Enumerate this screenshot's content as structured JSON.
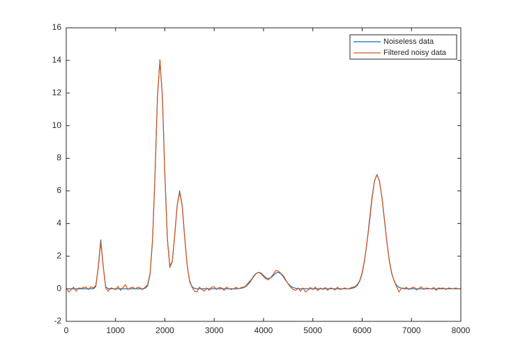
{
  "chart_data": {
    "type": "line",
    "x": [
      0,
      50,
      100,
      150,
      200,
      250,
      300,
      350,
      400,
      450,
      500,
      550,
      600,
      650,
      700,
      750,
      800,
      850,
      900,
      950,
      1000,
      1050,
      1100,
      1150,
      1200,
      1250,
      1300,
      1350,
      1400,
      1450,
      1500,
      1550,
      1600,
      1650,
      1700,
      1750,
      1800,
      1850,
      1900,
      1950,
      2000,
      2050,
      2100,
      2150,
      2200,
      2250,
      2300,
      2350,
      2400,
      2450,
      2500,
      2550,
      2600,
      2650,
      2700,
      2750,
      2800,
      2850,
      2900,
      2950,
      3000,
      3050,
      3100,
      3150,
      3200,
      3250,
      3300,
      3350,
      3400,
      3450,
      3500,
      3550,
      3600,
      3650,
      3700,
      3750,
      3800,
      3850,
      3900,
      3950,
      4000,
      4050,
      4100,
      4150,
      4200,
      4250,
      4300,
      4350,
      4400,
      4450,
      4500,
      4550,
      4600,
      4650,
      4700,
      4750,
      4800,
      4850,
      4900,
      4950,
      5000,
      5050,
      5100,
      5150,
      5200,
      5250,
      5300,
      5350,
      5400,
      5450,
      5500,
      5550,
      5600,
      5650,
      5700,
      5750,
      5800,
      5850,
      5900,
      5950,
      6000,
      6050,
      6100,
      6150,
      6200,
      6250,
      6300,
      6350,
      6400,
      6450,
      6500,
      6550,
      6600,
      6650,
      6700,
      6750,
      6800,
      6850,
      6900,
      6950,
      7000,
      7050,
      7100,
      7150,
      7200,
      7250,
      7300,
      7350,
      7400,
      7450,
      7500,
      7550,
      7600,
      7650,
      7700,
      7750,
      7800,
      7850,
      7900,
      7950,
      8000
    ],
    "series": [
      {
        "name": "Noiseless data",
        "color": "#0072bd",
        "values": [
          0,
          0,
          0,
          0,
          0,
          0,
          0,
          0,
          0,
          0,
          0,
          0,
          0.13,
          1.37,
          3,
          1.37,
          0.13,
          0,
          0,
          0,
          0,
          0,
          0,
          0,
          0,
          0,
          0,
          0,
          0,
          0,
          0,
          0,
          0.03,
          0.18,
          0.88,
          2.95,
          7.01,
          11.78,
          14,
          11.78,
          7.03,
          3.08,
          1.39,
          1.68,
          3.27,
          5.14,
          6,
          5.14,
          3.24,
          1.5,
          0.51,
          0.13,
          0.02,
          0,
          0,
          0,
          0,
          0,
          0,
          0,
          0,
          0,
          0,
          0,
          0,
          0,
          0,
          0,
          0,
          0,
          0.01,
          0.03,
          0.07,
          0.16,
          0.31,
          0.51,
          0.74,
          0.93,
          1.01,
          0.96,
          0.81,
          0.67,
          0.62,
          0.67,
          0.81,
          0.96,
          1.01,
          0.93,
          0.74,
          0.51,
          0.31,
          0.16,
          0.07,
          0.03,
          0.01,
          0,
          0,
          0,
          0,
          0,
          0,
          0,
          0,
          0,
          0,
          0,
          0,
          0,
          0,
          0,
          0,
          0,
          0,
          0,
          0,
          0,
          0.03,
          0.08,
          0.2,
          0.46,
          0.95,
          1.75,
          2.88,
          4.25,
          5.61,
          6.62,
          7,
          6.62,
          5.61,
          4.25,
          2.88,
          1.75,
          0.95,
          0.46,
          0.2,
          0.08,
          0.03,
          0,
          0,
          0,
          0,
          0,
          0,
          0,
          0,
          0,
          0,
          0,
          0,
          0,
          0,
          0,
          0,
          0,
          0,
          0,
          0,
          0,
          0,
          0,
          0
        ]
      },
      {
        "name": "Filtered noisy data",
        "color": "#d95319",
        "values": [
          0.05,
          -0.2,
          -0.05,
          0.1,
          -0.15,
          0.05,
          0.02,
          0.08,
          0.1,
          -0.05,
          0.12,
          0.05,
          0.2,
          1.3,
          2.85,
          1.4,
          0.05,
          -0.15,
          0.05,
          0.02,
          -0.05,
          0.15,
          -0.1,
          0.08,
          0.25,
          -0.05,
          0.05,
          0.1,
          -0.02,
          0.1,
          0.05,
          -0.05,
          0.1,
          0.25,
          0.95,
          3.0,
          6.95,
          11.8,
          14.05,
          11.7,
          7.0,
          3.1,
          1.3,
          1.65,
          3.3,
          5.1,
          5.9,
          5.1,
          3.2,
          1.5,
          0.45,
          0.1,
          -0.15,
          -0.2,
          0.1,
          -0.05,
          -0.15,
          0.05,
          -0.1,
          0.1,
          0.12,
          -0.05,
          0.08,
          0.05,
          -0.1,
          0.1,
          0.0,
          -0.05,
          0.02,
          0.08,
          0.0,
          0.08,
          0.1,
          0.2,
          0.4,
          0.55,
          0.78,
          0.95,
          1.0,
          0.92,
          0.75,
          0.6,
          0.55,
          0.7,
          0.9,
          1.12,
          1.08,
          0.95,
          0.8,
          0.55,
          0.28,
          0.1,
          -0.05,
          -0.1,
          0.05,
          -0.15,
          0.05,
          -0.2,
          -0.1,
          0.08,
          -0.05,
          0.1,
          -0.12,
          0.05,
          -0.05,
          0.08,
          -0.1,
          0.05,
          0.02,
          -0.08,
          0.1,
          -0.05,
          0.0,
          0.05,
          -0.02,
          0.03,
          0.1,
          0.12,
          0.25,
          0.5,
          1.0,
          1.8,
          2.9,
          4.1,
          5.5,
          6.6,
          7.0,
          6.6,
          5.65,
          4.3,
          2.9,
          1.7,
          0.9,
          0.5,
          0.1,
          -0.2,
          0.05,
          0.02,
          0.08,
          -0.05,
          0.05,
          0.1,
          -0.08,
          0.02,
          0.12,
          -0.05,
          0.05,
          0.02,
          -0.02,
          0.08,
          -0.1,
          0.05,
          0.02,
          0.05,
          -0.05,
          0.05,
          0.02,
          0.0,
          0.05,
          -0.02,
          0.02
        ]
      }
    ],
    "xlim": [
      0,
      8000
    ],
    "xticks": [
      0,
      1000,
      2000,
      3000,
      4000,
      5000,
      6000,
      7000,
      8000
    ],
    "ylim": [
      -2,
      16
    ],
    "yticks": [
      -2,
      0,
      2,
      4,
      6,
      8,
      10,
      12,
      14,
      16
    ],
    "legend": "northeast",
    "grid": false
  }
}
